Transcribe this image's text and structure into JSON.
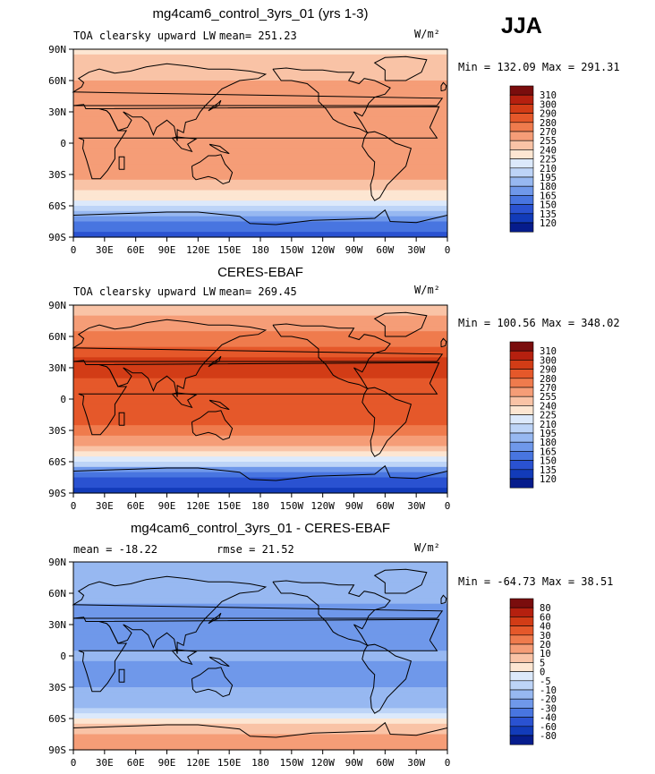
{
  "season": "JJA",
  "chart_data": [
    {
      "type": "heatmap",
      "title": "mg4cam6_control_3yrs_01 (yrs 1-3)",
      "variable": "TOA clearsky upward LW",
      "units_label": "W/m²",
      "stats": {
        "mean": "mean= 251.23",
        "minmax": "Min = 132.09 Max = 291.31"
      },
      "lat_ticks": [
        "90N",
        "60N",
        "30N",
        "0",
        "30S",
        "60S",
        "90S"
      ],
      "lon_ticks": [
        "0",
        "30E",
        "60E",
        "90E",
        "120E",
        "150E",
        "180",
        "150W",
        "120W",
        "90W",
        "60W",
        "30W",
        "0"
      ],
      "levels": [
        "310",
        "300",
        "290",
        "280",
        "270",
        "255",
        "240",
        "225",
        "210",
        "195",
        "180",
        "165",
        "150",
        "135",
        "120"
      ],
      "colors": [
        "#7a0d0d",
        "#b5200f",
        "#d23c16",
        "#e5582a",
        "#ef7b4d",
        "#f59d77",
        "#f9c3a6",
        "#fde6d2",
        "#dce9fb",
        "#bdd4f7",
        "#97b8f1",
        "#6f98ea",
        "#4875e0",
        "#2a52d1",
        "#123bb9",
        "#061c8c"
      ],
      "zonal_profile": [
        {
          "lat": 90,
          "value": 235
        },
        {
          "lat": 75,
          "value": 245
        },
        {
          "lat": 60,
          "value": 256
        },
        {
          "lat": 45,
          "value": 262
        },
        {
          "lat": 30,
          "value": 270
        },
        {
          "lat": 15,
          "value": 265
        },
        {
          "lat": 0,
          "value": 263
        },
        {
          "lat": -15,
          "value": 262
        },
        {
          "lat": -30,
          "value": 258
        },
        {
          "lat": -45,
          "value": 245
        },
        {
          "lat": -55,
          "value": 220
        },
        {
          "lat": -65,
          "value": 190
        },
        {
          "lat": -75,
          "value": 160
        },
        {
          "lat": -90,
          "value": 145
        }
      ]
    },
    {
      "type": "heatmap",
      "title": "CERES-EBAF",
      "variable": "TOA clearsky upward LW",
      "units_label": "W/m²",
      "stats": {
        "mean": "mean= 269.45",
        "minmax": "Min = 100.56 Max = 348.02"
      },
      "lat_ticks": [
        "90N",
        "60N",
        "30N",
        "0",
        "30S",
        "60S",
        "90S"
      ],
      "lon_ticks": [
        "0",
        "30E",
        "60E",
        "90E",
        "120E",
        "150E",
        "180",
        "150W",
        "120W",
        "90W",
        "60W",
        "30W",
        "0"
      ],
      "levels": [
        "310",
        "300",
        "290",
        "280",
        "270",
        "255",
        "240",
        "225",
        "210",
        "195",
        "180",
        "165",
        "150",
        "135",
        "120"
      ],
      "colors": [
        "#7a0d0d",
        "#b5200f",
        "#d23c16",
        "#e5582a",
        "#ef7b4d",
        "#f59d77",
        "#f9c3a6",
        "#fde6d2",
        "#dce9fb",
        "#bdd4f7",
        "#97b8f1",
        "#6f98ea",
        "#4875e0",
        "#2a52d1",
        "#123bb9",
        "#061c8c"
      ],
      "zonal_profile": [
        {
          "lat": 90,
          "value": 245
        },
        {
          "lat": 75,
          "value": 262
        },
        {
          "lat": 60,
          "value": 272
        },
        {
          "lat": 45,
          "value": 285
        },
        {
          "lat": 30,
          "value": 295
        },
        {
          "lat": 15,
          "value": 288
        },
        {
          "lat": 0,
          "value": 282
        },
        {
          "lat": -15,
          "value": 285
        },
        {
          "lat": -30,
          "value": 278
        },
        {
          "lat": -45,
          "value": 258
        },
        {
          "lat": -55,
          "value": 225
        },
        {
          "lat": -65,
          "value": 185
        },
        {
          "lat": -75,
          "value": 150
        },
        {
          "lat": -90,
          "value": 130
        }
      ]
    },
    {
      "type": "heatmap",
      "title": "mg4cam6_control_3yrs_01 - CERES-EBAF",
      "variable": "",
      "units_label": "W/m²",
      "stats": {
        "mean": "mean = -18.22",
        "rmse": "rmse =  21.52",
        "minmax": "Min = -64.73 Max =  38.51"
      },
      "lat_ticks": [
        "90N",
        "60N",
        "30N",
        "0",
        "30S",
        "60S",
        "90S"
      ],
      "lon_ticks": [
        "0",
        "30E",
        "60E",
        "90E",
        "120E",
        "150E",
        "180",
        "150W",
        "120W",
        "90W",
        "60W",
        "30W",
        "0"
      ],
      "levels": [
        "80",
        "60",
        "40",
        "30",
        "20",
        "10",
        "5",
        "0",
        "-5",
        "-10",
        "-20",
        "-30",
        "-40",
        "-60",
        "-80"
      ],
      "colors": [
        "#7a0d0d",
        "#b5200f",
        "#d23c16",
        "#e5582a",
        "#ef7b4d",
        "#f59d77",
        "#f9c3a6",
        "#fde6d2",
        "#dce9fb",
        "#bdd4f7",
        "#97b8f1",
        "#6f98ea",
        "#4875e0",
        "#2a52d1",
        "#123bb9",
        "#061c8c"
      ],
      "zonal_profile": [
        {
          "lat": 90,
          "value": -10
        },
        {
          "lat": 75,
          "value": -18
        },
        {
          "lat": 60,
          "value": -17
        },
        {
          "lat": 45,
          "value": -22
        },
        {
          "lat": 30,
          "value": -26
        },
        {
          "lat": 15,
          "value": -23
        },
        {
          "lat": 0,
          "value": -19
        },
        {
          "lat": -15,
          "value": -22
        },
        {
          "lat": -30,
          "value": -20
        },
        {
          "lat": -45,
          "value": -13
        },
        {
          "lat": -55,
          "value": -4
        },
        {
          "lat": -65,
          "value": 4
        },
        {
          "lat": -75,
          "value": 10
        },
        {
          "lat": -90,
          "value": 15
        }
      ]
    }
  ]
}
